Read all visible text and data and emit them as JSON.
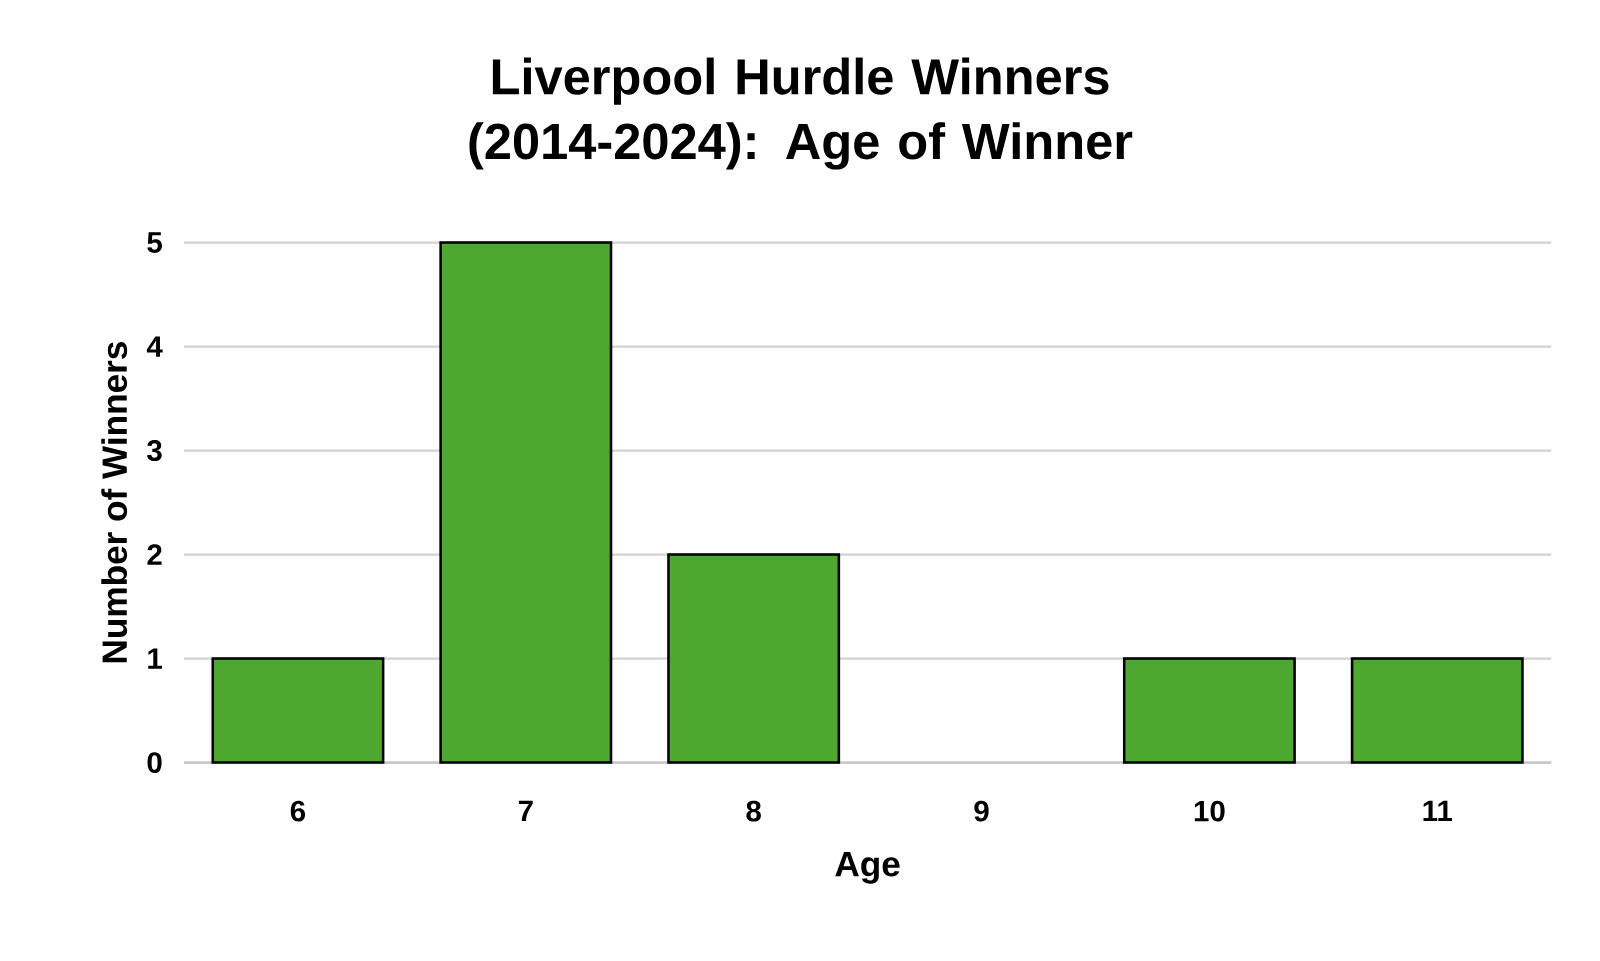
{
  "chart_data": {
    "type": "bar",
    "title": "Liverpool Hurdle Winners (2014-2024): Age of Winner",
    "xlabel": "Age",
    "ylabel": "Number of Winners",
    "categories": [
      "6",
      "7",
      "8",
      "9",
      "10",
      "11"
    ],
    "values": [
      1,
      5,
      2,
      0,
      1,
      1
    ],
    "color": "#4ea72e",
    "ylim": [
      0,
      5
    ],
    "yticks": [
      0,
      1,
      2,
      3,
      4,
      5
    ],
    "grid": "y"
  }
}
